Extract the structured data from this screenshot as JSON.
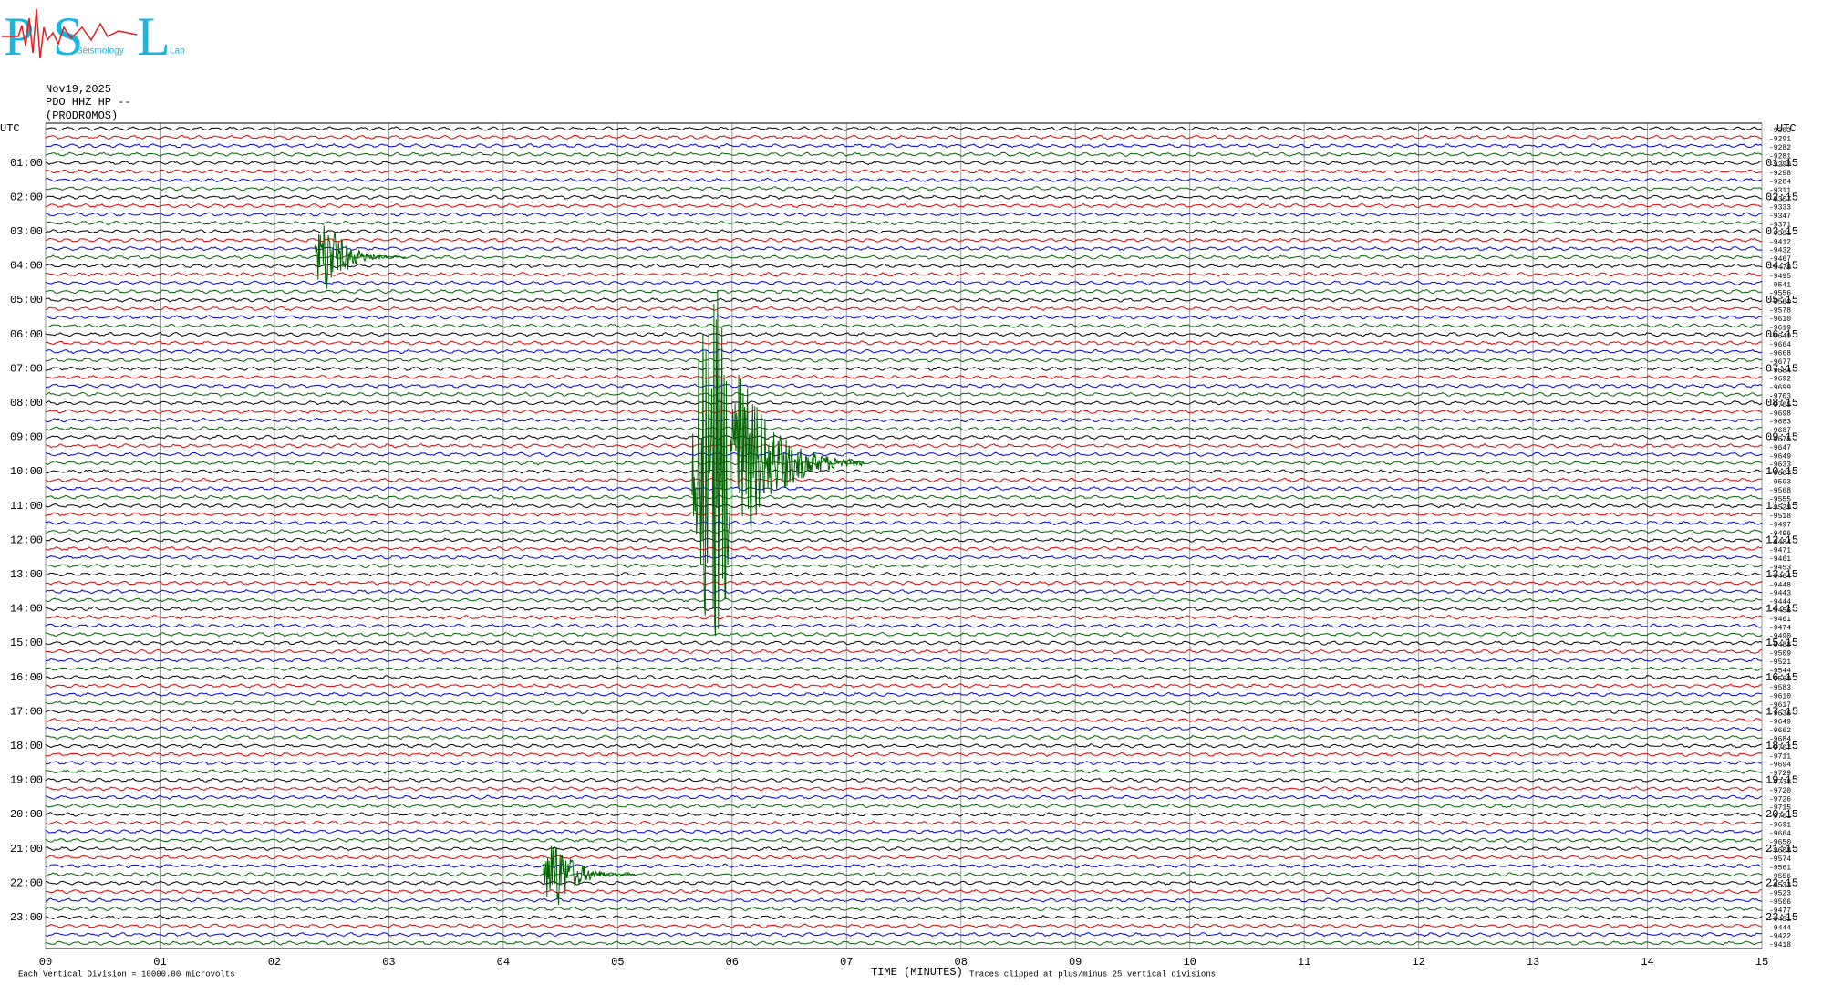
{
  "logo": {
    "letters": [
      "P",
      "S",
      "L"
    ],
    "words": [
      "Seismology",
      "Lab"
    ]
  },
  "header": [
    "Nov19,2025",
    "PDO HHZ HP --",
    "(PRODROMOS)"
  ],
  "chart_data": {
    "type": "helicorder",
    "left_axis_title": "UTC",
    "right_axis_title": "UTC",
    "left_labels": [
      "01:00",
      "02:00",
      "03:00",
      "04:00",
      "05:00",
      "06:00",
      "07:00",
      "08:00",
      "09:00",
      "10:00",
      "11:00",
      "12:00",
      "13:00",
      "14:00",
      "15:00",
      "16:00",
      "17:00",
      "18:00",
      "19:00",
      "20:00",
      "21:00",
      "22:00",
      "23:00"
    ],
    "right_labels": [
      "01:15",
      "02:15",
      "03:15",
      "04:15",
      "05:15",
      "06:15",
      "07:15",
      "08:15",
      "09:15",
      "10:15",
      "11:15",
      "12:15",
      "13:15",
      "14:15",
      "15:15",
      "16:15",
      "17:15",
      "18:15",
      "19:15",
      "20:15",
      "21:15",
      "22:15",
      "23:15"
    ],
    "trace_labels": [
      -9303,
      -9291,
      -9282,
      -9281,
      -9290,
      -9298,
      -9284,
      -9311,
      -9307,
      -9333,
      -9347,
      -9371,
      -9391,
      -9412,
      -9432,
      -9467,
      -9479,
      -9495,
      -9541,
      -9556,
      -9560,
      -9578,
      -9610,
      -9619,
      -9640,
      -9664,
      -9668,
      -9677,
      -9684,
      -9692,
      -9699,
      -9703,
      -9705,
      -9698,
      -9683,
      -9687,
      -9675,
      -9647,
      -9649,
      -9633,
      -9607,
      -9593,
      -9568,
      -9555,
      -9529,
      -9518,
      -9497,
      -9496,
      -9484,
      -9471,
      -9461,
      -9453,
      -9464,
      -9448,
      -9443,
      -9444,
      -9456,
      -9461,
      -9474,
      -9490,
      -9488,
      -9509,
      -9521,
      -9544,
      -9560,
      -9583,
      -9610,
      -9617,
      -9636,
      -9649,
      -9662,
      -9684,
      -9707,
      -9711,
      -9694,
      -9729,
      -9738,
      -9720,
      -9726,
      -9715,
      -9701,
      -9691,
      -9664,
      -9650,
      -9608,
      -9574,
      -9561,
      -9556,
      -9533,
      -9523,
      -9506,
      -9477,
      -9451,
      -9444,
      -9422,
      -9418
    ],
    "trace_colors": [
      "#000000",
      "#e00000",
      "#0000e0",
      "#006400"
    ],
    "xlim": [
      0,
      15
    ],
    "xticks": [
      {
        "value": 0,
        "label": "00"
      },
      {
        "value": 1,
        "label": "01"
      },
      {
        "value": 2,
        "label": "02"
      },
      {
        "value": 3,
        "label": "03"
      },
      {
        "value": 4,
        "label": "04"
      },
      {
        "value": 5,
        "label": "05"
      },
      {
        "value": 6,
        "label": "06"
      },
      {
        "value": 7,
        "label": "07"
      },
      {
        "value": 8,
        "label": "08"
      },
      {
        "value": 9,
        "label": "09"
      },
      10,
      11,
      12,
      13,
      14,
      15
    ],
    "x_label": "TIME (MINUTES)",
    "scale_note": "Each Vertical Division = 10000.00 microvolts",
    "clip_note": "Traces clipped at plus/minus 25 vertical divisions",
    "clip_divisions": 25,
    "grid": true,
    "events": [
      {
        "trace": 15,
        "minute": 2.35,
        "amplitude": 5,
        "duration": 0.8
      },
      {
        "trace": 39,
        "minute": 5.65,
        "amplitude": 25,
        "duration": 1.5
      },
      {
        "trace": 87,
        "minute": 4.35,
        "amplitude": 5,
        "duration": 0.8
      }
    ]
  }
}
